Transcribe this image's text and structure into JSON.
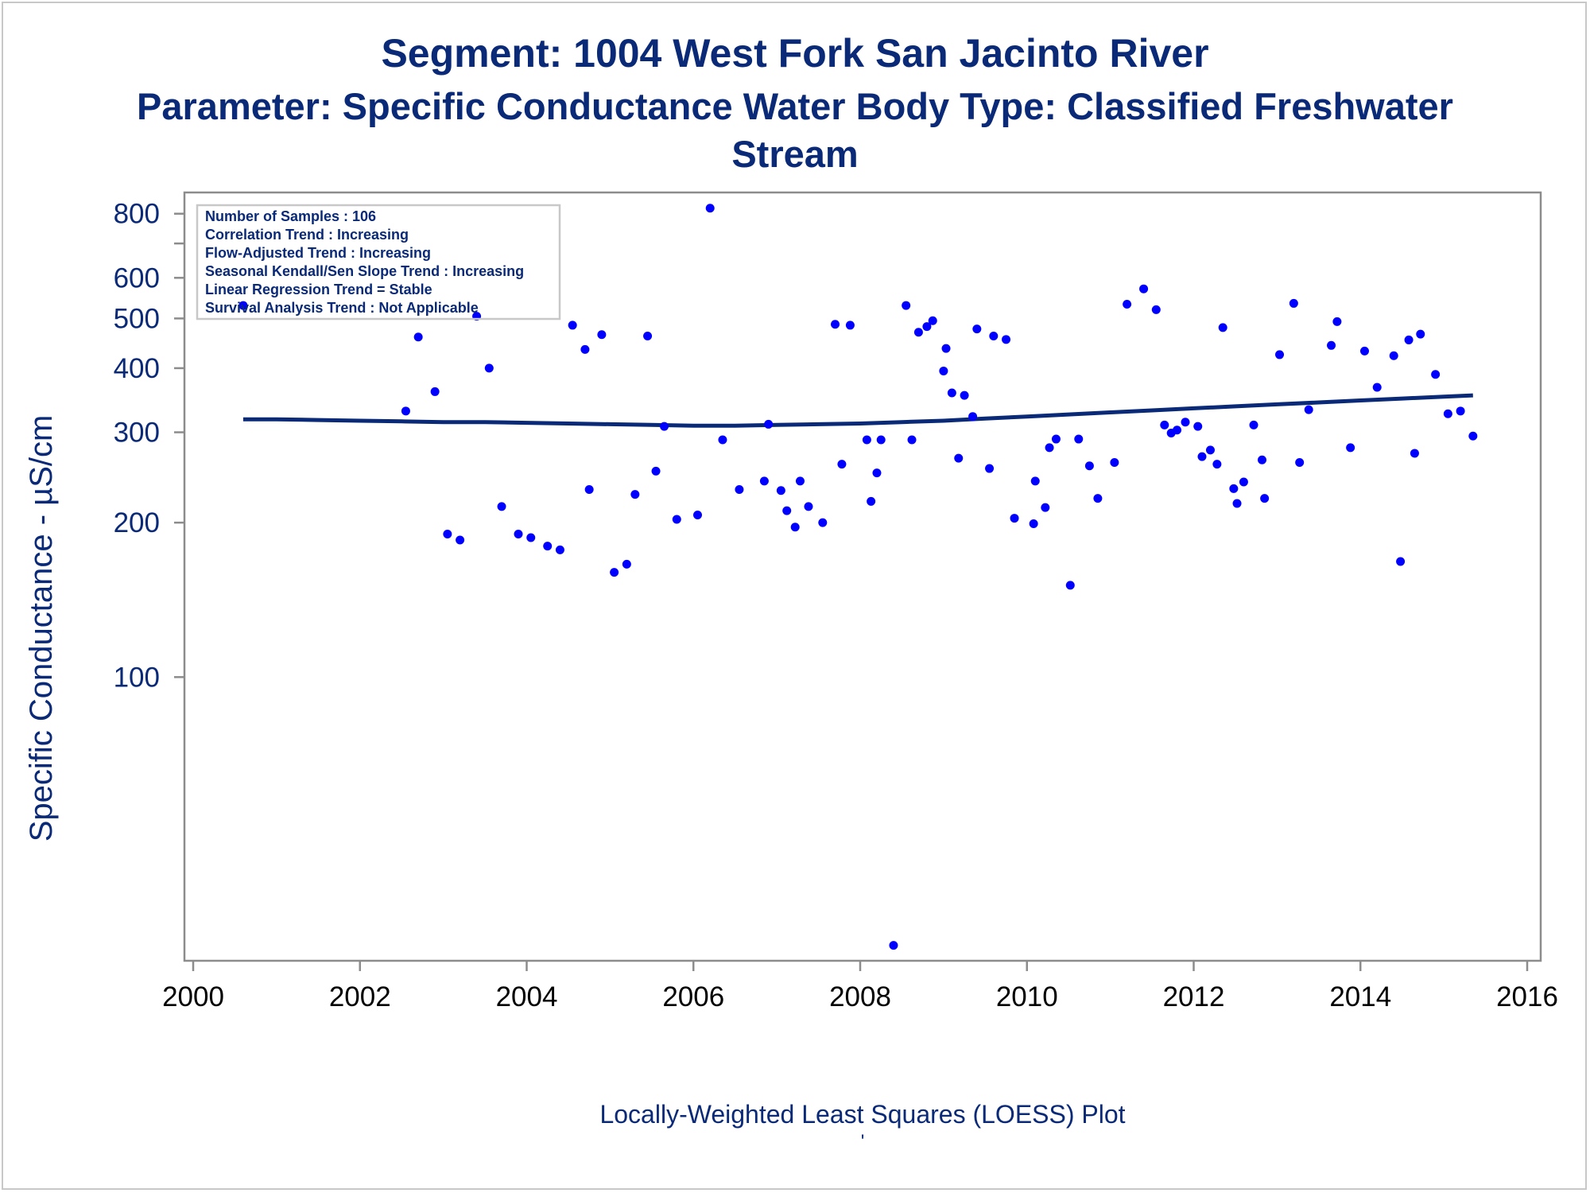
{
  "titles": {
    "line1": "Segment: 1004  West Fork San Jacinto River",
    "line2": "Parameter: Specific Conductance   Water Body Type: Classified Freshwater",
    "line3": "Stream"
  },
  "footnotes": {
    "line1": "Locally-Weighted Least Squares (LOESS) Plot",
    "line2": "'"
  },
  "colors": {
    "text": "#0a2a78",
    "points": "#0000ff",
    "trend_line": "#0a2a78",
    "axis": "#8c8c8c"
  },
  "chart_data": {
    "type": "scatter",
    "ylabel": "Specific Conductance -  µS/cm",
    "y_scale": "log",
    "xlim": [
      2000,
      2016
    ],
    "ylim": [
      28,
      880
    ],
    "x_ticks": [
      2000,
      2002,
      2004,
      2006,
      2008,
      2010,
      2012,
      2014,
      2016
    ],
    "x_tick_labels": [
      "2000",
      "2002",
      "2004",
      "2006",
      "2008",
      "2010",
      "2012",
      "2014",
      "2016"
    ],
    "y_ticks": [
      100,
      200,
      300,
      400,
      500,
      600,
      800
    ],
    "y_tick_labels": [
      "100",
      "200",
      "300",
      "400",
      "500",
      "600",
      "800"
    ],
    "y_minor_ticks": [
      700
    ],
    "grid": false,
    "legend": "none",
    "inset_box": {
      "position": "top-left",
      "lines": [
        "Number of Samples : 106",
        "Correlation Trend : Increasing",
        "Flow-Adjusted Trend : Increasing",
        "Seasonal Kendall/Sen Slope Trend : Increasing",
        "Linear Regression Trend = Stable",
        "Survival Analysis Trend : Not Applicable"
      ]
    },
    "series": [
      {
        "type": "scatter",
        "points": [
          [
            2000.6,
            530
          ],
          [
            2002.55,
            330
          ],
          [
            2002.7,
            460
          ],
          [
            2002.9,
            360
          ],
          [
            2003.05,
            190
          ],
          [
            2003.2,
            185
          ],
          [
            2003.4,
            505
          ],
          [
            2003.55,
            400
          ],
          [
            2003.7,
            215
          ],
          [
            2003.9,
            190
          ],
          [
            2004.05,
            187
          ],
          [
            2004.25,
            180
          ],
          [
            2004.4,
            177
          ],
          [
            2004.55,
            485
          ],
          [
            2004.7,
            435
          ],
          [
            2004.75,
            232
          ],
          [
            2004.9,
            465
          ],
          [
            2005.05,
            160
          ],
          [
            2005.2,
            166
          ],
          [
            2005.3,
            227
          ],
          [
            2005.45,
            462
          ],
          [
            2005.55,
            252
          ],
          [
            2005.65,
            308
          ],
          [
            2005.8,
            203
          ],
          [
            2006.05,
            207
          ],
          [
            2006.2,
            820
          ],
          [
            2006.35,
            290
          ],
          [
            2006.55,
            232
          ],
          [
            2006.85,
            241
          ],
          [
            2006.9,
            311
          ],
          [
            2007.05,
            231
          ],
          [
            2007.12,
            211
          ],
          [
            2007.22,
            196
          ],
          [
            2007.28,
            241
          ],
          [
            2007.38,
            215
          ],
          [
            2007.55,
            200
          ],
          [
            2007.7,
            487
          ],
          [
            2007.78,
            260
          ],
          [
            2007.88,
            485
          ],
          [
            2008.08,
            290
          ],
          [
            2008.13,
            220
          ],
          [
            2008.2,
            250
          ],
          [
            2008.25,
            290
          ],
          [
            2008.4,
            30
          ],
          [
            2008.55,
            530
          ],
          [
            2008.62,
            290
          ],
          [
            2008.7,
            470
          ],
          [
            2008.8,
            482
          ],
          [
            2008.87,
            495
          ],
          [
            2009.0,
            395
          ],
          [
            2009.03,
            437
          ],
          [
            2009.1,
            358
          ],
          [
            2009.18,
            267
          ],
          [
            2009.25,
            354
          ],
          [
            2009.35,
            322
          ],
          [
            2009.4,
            477
          ],
          [
            2009.55,
            255
          ],
          [
            2009.6,
            462
          ],
          [
            2009.75,
            455
          ],
          [
            2009.85,
            204
          ],
          [
            2010.08,
            199
          ],
          [
            2010.1,
            241
          ],
          [
            2010.22,
            214
          ],
          [
            2010.27,
            280
          ],
          [
            2010.35,
            291
          ],
          [
            2010.52,
            151
          ],
          [
            2010.62,
            291
          ],
          [
            2010.75,
            258
          ],
          [
            2010.85,
            223
          ],
          [
            2011.05,
            262
          ],
          [
            2011.2,
            533
          ],
          [
            2011.4,
            571
          ],
          [
            2011.55,
            520
          ],
          [
            2011.65,
            310
          ],
          [
            2011.73,
            299
          ],
          [
            2011.8,
            303
          ],
          [
            2011.9,
            314
          ],
          [
            2012.05,
            308
          ],
          [
            2012.1,
            269
          ],
          [
            2012.2,
            277
          ],
          [
            2012.28,
            260
          ],
          [
            2012.35,
            480
          ],
          [
            2012.48,
            233
          ],
          [
            2012.52,
            218
          ],
          [
            2012.6,
            240
          ],
          [
            2012.72,
            310
          ],
          [
            2012.82,
            265
          ],
          [
            2012.85,
            223
          ],
          [
            2013.03,
            425
          ],
          [
            2013.2,
            535
          ],
          [
            2013.27,
            262
          ],
          [
            2013.38,
            332
          ],
          [
            2013.65,
            443
          ],
          [
            2013.72,
            493
          ],
          [
            2013.88,
            280
          ],
          [
            2014.05,
            432
          ],
          [
            2014.2,
            367
          ],
          [
            2014.4,
            423
          ],
          [
            2014.48,
            168
          ],
          [
            2014.58,
            454
          ],
          [
            2014.65,
            273
          ],
          [
            2014.72,
            466
          ],
          [
            2014.9,
            389
          ],
          [
            2015.05,
            326
          ],
          [
            2015.2,
            330
          ],
          [
            2015.35,
            295
          ]
        ]
      },
      {
        "type": "line",
        "points": [
          [
            2000.6,
            318
          ],
          [
            2001.0,
            318
          ],
          [
            2001.5,
            317
          ],
          [
            2002.0,
            316
          ],
          [
            2002.5,
            315
          ],
          [
            2003.0,
            314
          ],
          [
            2003.5,
            314
          ],
          [
            2004.0,
            313
          ],
          [
            2004.5,
            312
          ],
          [
            2005.0,
            311
          ],
          [
            2005.5,
            310
          ],
          [
            2006.0,
            309
          ],
          [
            2006.5,
            309
          ],
          [
            2007.0,
            310
          ],
          [
            2007.5,
            311
          ],
          [
            2008.0,
            312
          ],
          [
            2008.5,
            314
          ],
          [
            2009.0,
            316
          ],
          [
            2009.5,
            319
          ],
          [
            2010.0,
            322
          ],
          [
            2010.5,
            325
          ],
          [
            2011.0,
            328
          ],
          [
            2011.5,
            331
          ],
          [
            2012.0,
            334
          ],
          [
            2012.5,
            337
          ],
          [
            2013.0,
            340
          ],
          [
            2013.5,
            343
          ],
          [
            2014.0,
            346
          ],
          [
            2014.5,
            349
          ],
          [
            2015.0,
            352
          ],
          [
            2015.35,
            354
          ]
        ]
      }
    ]
  }
}
